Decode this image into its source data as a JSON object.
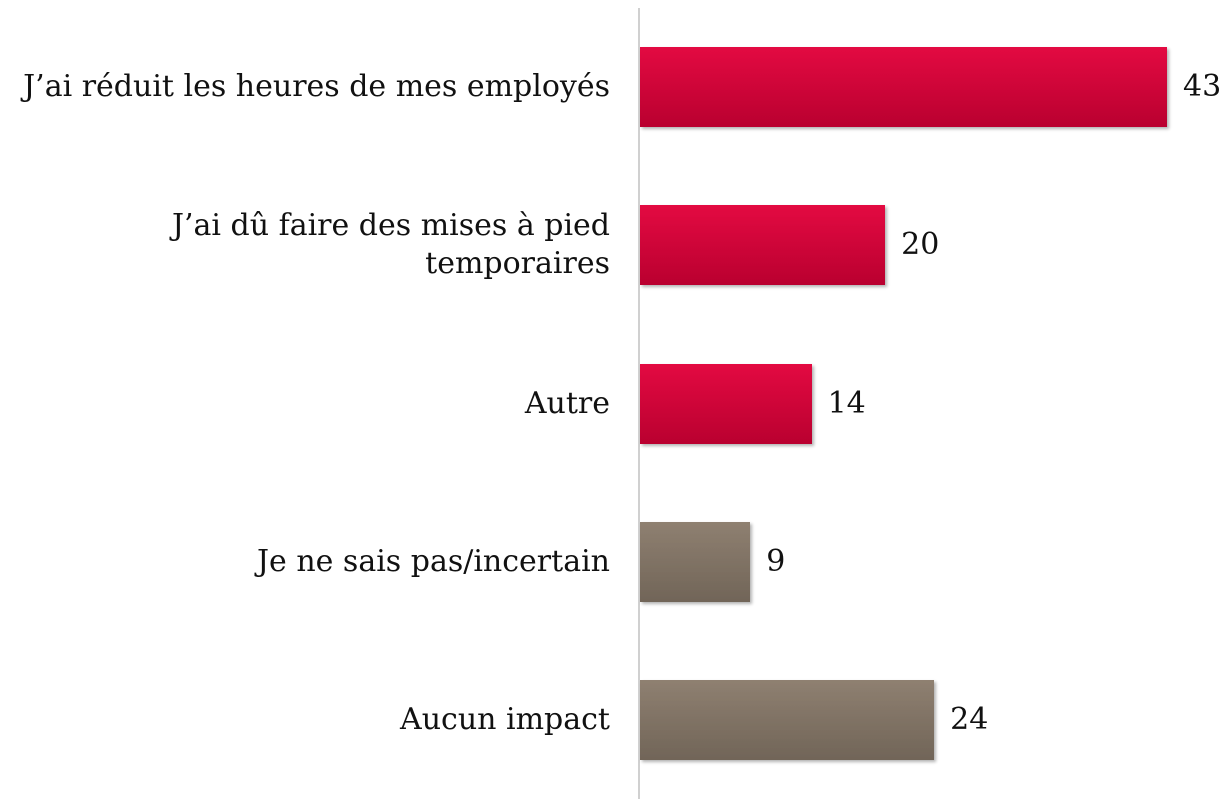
{
  "chart_data": {
    "type": "bar",
    "orientation": "horizontal",
    "categories": [
      "J’ai réduit les heures de mes employés",
      "J’ai dû faire des mises à pied\ntemporaires",
      "Autre",
      "Je ne sais pas/incertain",
      "Aucun impact"
    ],
    "values": [
      43,
      20,
      14,
      9,
      24
    ],
    "colors": [
      "#e2003a",
      "#e2003a",
      "#e2003a",
      "#8a7b6b",
      "#8a7b6b"
    ]
  }
}
